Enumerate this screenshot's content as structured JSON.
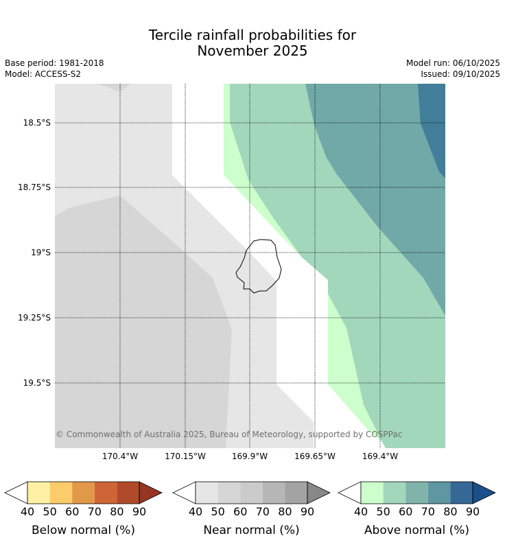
{
  "title": {
    "line1": "Tercile rainfall probabilities for",
    "line2": "November 2025"
  },
  "meta": {
    "base_period": "Base period: 1981-2018",
    "model": "Model: ACCESS-S2",
    "model_run": "Model run: 06/10/2025",
    "issued": "Issued: 09/10/2025"
  },
  "map": {
    "lat_labels": [
      "18.5°S",
      "18.75°S",
      "19°S",
      "19.25°S",
      "19.5°S"
    ],
    "lon_labels": [
      "170.4°W",
      "170.15°W",
      "169.9°W",
      "169.65°W",
      "169.4°W"
    ],
    "copyright": "© Commonwealth of Australia 2025, Bureau of Meteorology, supported by COSPPac",
    "gridlines": true,
    "island": "Niue",
    "categories": [
      {
        "category": "near normal",
        "probability_range": "40-50"
      },
      {
        "category": "near normal",
        "probability_range": "50-60"
      },
      {
        "category": "above normal",
        "probability_range": "40-50"
      },
      {
        "category": "above normal",
        "probability_range": "50-60"
      },
      {
        "category": "above normal",
        "probability_range": "60-70"
      },
      {
        "category": "above normal",
        "probability_range": "70-80"
      }
    ]
  },
  "colorbars": [
    {
      "label": "Below normal (%)",
      "ticks": [
        "40",
        "50",
        "60",
        "70",
        "80",
        "90"
      ],
      "colors": [
        "#fef0a5",
        "#fdcc6a",
        "#e29849",
        "#cf6537",
        "#b04a2b",
        "#963522"
      ]
    },
    {
      "label": "Near normal (%)",
      "ticks": [
        "40",
        "50",
        "60",
        "70",
        "80",
        "90"
      ],
      "colors": [
        "#e6e6e6",
        "#d6d6d6",
        "#cbcbcb",
        "#b6b6b6",
        "#a3a3a3",
        "#888888"
      ]
    },
    {
      "label": "Above normal (%)",
      "ticks": [
        "40",
        "50",
        "60",
        "70",
        "80",
        "90"
      ],
      "colors": [
        "#ccffcc",
        "#a2d7bc",
        "#80b4aa",
        "#5e96a2",
        "#356896",
        "#1a4f8a"
      ]
    }
  ]
}
